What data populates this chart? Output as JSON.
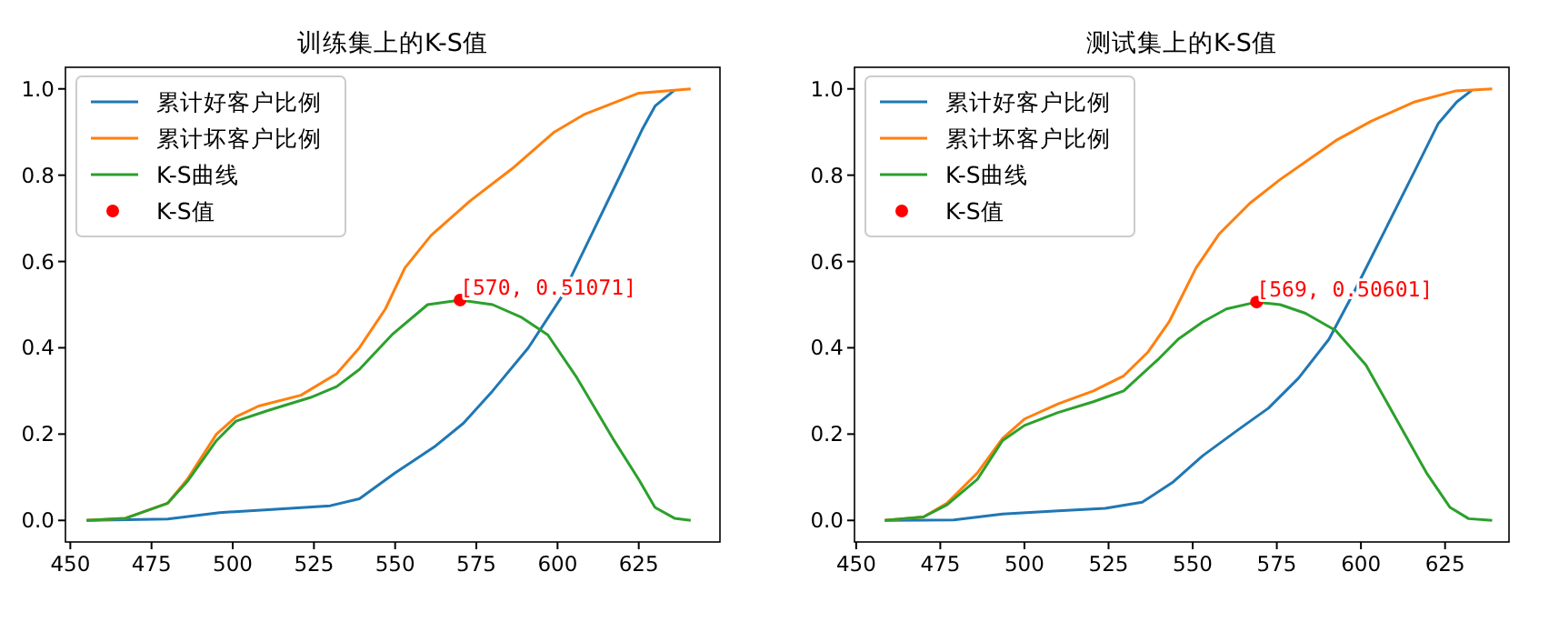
{
  "chart_data": [
    {
      "type": "line",
      "title": "训练集上的K-S值",
      "xlim": [
        448.5,
        650
      ],
      "ylim": [
        -0.05,
        1.05
      ],
      "xticks": [
        450,
        475,
        500,
        525,
        550,
        575,
        600,
        625
      ],
      "yticks": [
        {
          "value": 0,
          "label": "0.0"
        },
        {
          "value": 0.2,
          "label": "0.2"
        },
        {
          "value": 0.4,
          "label": "0.4"
        },
        {
          "value": 0.6,
          "label": "0.6"
        },
        {
          "value": 0.8,
          "label": "0.8"
        },
        {
          "value": 1,
          "label": "1.0"
        }
      ],
      "grid": false,
      "legend": "top left",
      "marker": "none",
      "line_style": "solid",
      "series": [
        {
          "name": "累计好客户比例",
          "color": "#1f77b4",
          "x": [
            455,
            480,
            496,
            511,
            530,
            539,
            550,
            562,
            571,
            580,
            591,
            601,
            610,
            619,
            626,
            630,
            636
          ],
          "values": [
            0,
            0.003,
            0.018,
            0.025,
            0.034,
            0.05,
            0.11,
            0.17,
            0.225,
            0.3,
            0.4,
            0.515,
            0.655,
            0.795,
            0.905,
            0.96,
            0.997
          ]
        },
        {
          "name": "累计坏客户比例",
          "color": "#ff7f0e",
          "x": [
            455,
            467,
            480,
            486,
            495,
            501,
            508,
            521,
            532,
            539,
            547,
            553,
            561,
            573,
            586,
            599,
            608,
            625,
            641
          ],
          "values": [
            0,
            0.005,
            0.04,
            0.095,
            0.2,
            0.24,
            0.265,
            0.29,
            0.34,
            0.4,
            0.49,
            0.585,
            0.66,
            0.74,
            0.815,
            0.9,
            0.94,
            0.99,
            1.0
          ]
        },
        {
          "name": "K-S曲线",
          "color": "#2ca02c",
          "x": [
            455,
            467,
            480,
            486,
            495,
            501,
            511,
            524,
            532,
            539,
            549,
            560,
            570,
            580,
            589,
            597,
            606,
            617,
            625,
            630,
            636,
            641
          ],
          "values": [
            0,
            0.005,
            0.04,
            0.09,
            0.185,
            0.23,
            0.255,
            0.285,
            0.31,
            0.35,
            0.43,
            0.5,
            0.51071,
            0.5,
            0.47,
            0.43,
            0.33,
            0.19,
            0.095,
            0.03,
            0.005,
            0
          ]
        },
        {
          "name": "K-S值",
          "type": "scatter",
          "marker": "circle",
          "color": "#ff0000",
          "x": [
            570
          ],
          "values": [
            0.51071
          ]
        }
      ],
      "annotations": [
        {
          "text": "[570, 0.51071]",
          "x": 570,
          "y": 0.51071
        }
      ]
    },
    {
      "type": "line",
      "title": "测试集上的K-S值",
      "xlim": [
        449.5,
        644
      ],
      "ylim": [
        -0.05,
        1.05
      ],
      "xticks": [
        450,
        475,
        500,
        525,
        550,
        575,
        600,
        625
      ],
      "yticks": [
        {
          "value": 0,
          "label": "0.0"
        },
        {
          "value": 0.2,
          "label": "0.2"
        },
        {
          "value": 0.4,
          "label": "0.4"
        },
        {
          "value": 0.6,
          "label": "0.6"
        },
        {
          "value": 0.8,
          "label": "0.8"
        },
        {
          "value": 1,
          "label": "1.0"
        }
      ],
      "grid": false,
      "legend": "top left",
      "marker": "none",
      "line_style": "solid",
      "series": [
        {
          "name": "累计好客户比例",
          "color": "#1f77b4",
          "x": [
            458.5,
            479,
            493.5,
            510,
            524,
            535,
            544,
            553,
            563.5,
            572.5,
            581.5,
            590.5,
            598,
            607,
            616,
            623,
            628.5,
            633
          ],
          "values": [
            0,
            0.001,
            0.015,
            0.022,
            0.028,
            0.042,
            0.088,
            0.15,
            0.21,
            0.26,
            0.33,
            0.42,
            0.53,
            0.67,
            0.81,
            0.92,
            0.97,
            0.997
          ]
        },
        {
          "name": "累计坏客户比例",
          "color": "#ff7f0e",
          "x": [
            458.5,
            470,
            477,
            486,
            493.5,
            500,
            510,
            520.5,
            529.5,
            536.7,
            543,
            551,
            558,
            567,
            576,
            587,
            592.5,
            603,
            616,
            628,
            639
          ],
          "values": [
            0,
            0.008,
            0.04,
            0.11,
            0.19,
            0.235,
            0.27,
            0.3,
            0.335,
            0.39,
            0.46,
            0.585,
            0.665,
            0.735,
            0.79,
            0.85,
            0.88,
            0.925,
            0.97,
            0.995,
            1.0
          ]
        },
        {
          "name": "K-S曲线",
          "color": "#2ca02c",
          "x": [
            458.5,
            470,
            477,
            486,
            493.5,
            500,
            510,
            520.5,
            529.5,
            540,
            545.7,
            553,
            560,
            569,
            576,
            583.5,
            592.5,
            601.5,
            610.5,
            619.5,
            626.5,
            632,
            639
          ],
          "values": [
            0,
            0.008,
            0.036,
            0.095,
            0.185,
            0.22,
            0.25,
            0.275,
            0.3,
            0.375,
            0.42,
            0.46,
            0.49,
            0.50601,
            0.5,
            0.48,
            0.44,
            0.36,
            0.235,
            0.11,
            0.03,
            0.004,
            0
          ]
        },
        {
          "name": "K-S值",
          "type": "scatter",
          "marker": "circle",
          "color": "#ff0000",
          "x": [
            569
          ],
          "values": [
            0.50601
          ]
        }
      ],
      "annotations": [
        {
          "text": "[569, 0.50601]",
          "x": 569,
          "y": 0.50601
        }
      ]
    }
  ]
}
